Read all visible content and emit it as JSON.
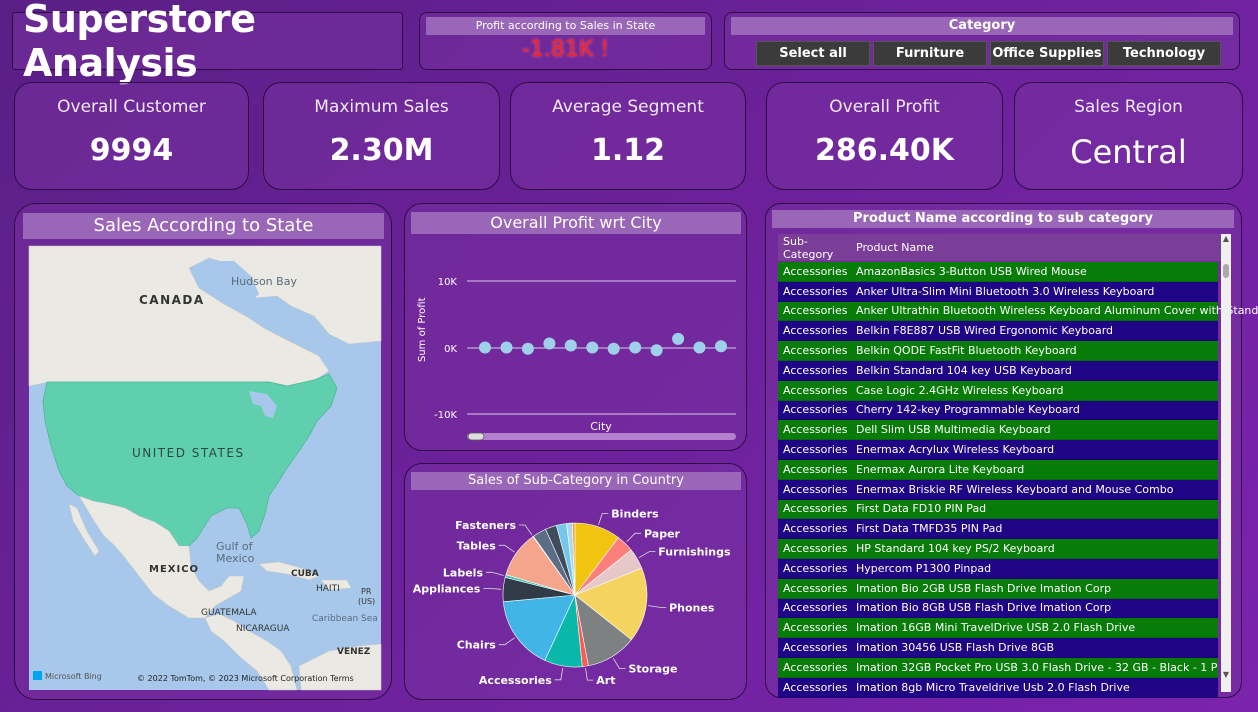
{
  "title": "Superstore Analysis",
  "profit_card": {
    "header": "Profit according to Sales in State",
    "value": "-1.81K !"
  },
  "category": {
    "header": "Category",
    "options": [
      "Select all",
      "Furniture",
      "Office Supplies",
      "Technology"
    ]
  },
  "kpis": {
    "customer": {
      "label": "Overall Customer",
      "value": "9994"
    },
    "max_sales": {
      "label": "Maximum Sales",
      "value": "2.30M"
    },
    "avg_segment": {
      "label": "Average Segment",
      "value": "1.12"
    },
    "profit": {
      "label": "Overall Profit",
      "value": "286.40K"
    },
    "region": {
      "label": "Sales Region",
      "value": "Central"
    }
  },
  "map": {
    "title": "Sales According to State",
    "labels": {
      "hudson": "Hudson Bay",
      "canada": "CANADA",
      "us": "UNITED STATES",
      "gulf1": "Gulf of",
      "gulf2": "Mexico",
      "mexico": "MEXICO",
      "cuba": "CUBA",
      "haiti": "HAITI",
      "pr1": "PR",
      "pr2": "(US)",
      "caribbean": "Caribbean Sea",
      "guatemala": "GUATEMALA",
      "nicaragua": "NICARAGUA",
      "venez": "VENEZ",
      "bing": "Microsoft Bing",
      "copyright": "© 2022 TomTom, © 2023 Microsoft Corporation  Terms"
    },
    "colors": {
      "water": "#a7c8ea",
      "land": "#ebe9e3",
      "highlight": "#5fcfae"
    }
  },
  "scatter": {
    "title": "Overall Profit wrt City",
    "chart_data": {
      "type": "scatter",
      "xlabel": "City",
      "ylabel": "Sum of Profit",
      "yticks": [
        "10K",
        "0K",
        "-10K"
      ],
      "ylim": [
        -10000,
        10000
      ],
      "values": [
        0,
        0,
        -200,
        600,
        300,
        0,
        -200,
        0,
        -400,
        1300,
        0,
        200
      ]
    }
  },
  "pie": {
    "title": "Sales of Sub-Category in Country",
    "chart_data": {
      "type": "pie",
      "slices": [
        {
          "label": "Binders",
          "value": 203,
          "color": "#f0c40f"
        },
        {
          "label": "Paper",
          "value": 78,
          "color": "#fd7f7c"
        },
        {
          "label": "Furnishings",
          "value": 92,
          "color": "#e6c8c8"
        },
        {
          "label": "Phones",
          "value": 330,
          "color": "#f4d35e"
        },
        {
          "label": "Storage",
          "value": 224,
          "color": "#7e8181"
        },
        {
          "label": "Art",
          "value": 27,
          "color": "#fc5a55"
        },
        {
          "label": "Accessories",
          "value": 167,
          "color": "#09b8a8"
        },
        {
          "label": "Chairs",
          "value": 328,
          "color": "#41b6e6"
        },
        {
          "label": "Appliances",
          "value": 107,
          "color": "#2f3c47"
        },
        {
          "label": "Labels",
          "value": 12,
          "color": "#3fc4b0"
        },
        {
          "label": "Tables",
          "value": 207,
          "color": "#f5a58c"
        },
        {
          "label": "Fasteners",
          "value": 3,
          "color": "#9b5b8e"
        },
        {
          "label": "",
          "value": 61,
          "color": "#5c6e85"
        },
        {
          "label": "",
          "value": 50,
          "color": "#3e4c5c"
        },
        {
          "label": "",
          "value": 45,
          "color": "#74c7e8"
        },
        {
          "label": "",
          "value": 25,
          "color": "#a8d8f2"
        },
        {
          "label": "",
          "value": 12,
          "color": "#f4a72e"
        }
      ]
    }
  },
  "table": {
    "title": "Product Name according to sub category",
    "headers": [
      "Sub-Category",
      "Product Name"
    ],
    "rows": [
      [
        "Accessories",
        "AmazonBasics 3-Button USB Wired Mouse"
      ],
      [
        "Accessories",
        "Anker Ultra-Slim Mini Bluetooth 3.0 Wireless Keyboard"
      ],
      [
        "Accessories",
        "Anker Ultrathin Bluetooth Wireless Keyboard Aluminum Cover with Stand"
      ],
      [
        "Accessories",
        "Belkin F8E887 USB Wired Ergonomic Keyboard"
      ],
      [
        "Accessories",
        "Belkin QODE FastFit Bluetooth Keyboard"
      ],
      [
        "Accessories",
        "Belkin Standard 104 key USB Keyboard"
      ],
      [
        "Accessories",
        "Case Logic 2.4GHz Wireless Keyboard"
      ],
      [
        "Accessories",
        "Cherry 142-key Programmable Keyboard"
      ],
      [
        "Accessories",
        "Dell Slim USB Multimedia Keyboard"
      ],
      [
        "Accessories",
        "Enermax Acrylux Wireless Keyboard"
      ],
      [
        "Accessories",
        "Enermax Aurora Lite Keyboard"
      ],
      [
        "Accessories",
        "Enermax Briskie RF Wireless Keyboard and Mouse Combo"
      ],
      [
        "Accessories",
        "First Data FD10 PIN Pad"
      ],
      [
        "Accessories",
        "First Data TMFD35 PIN Pad"
      ],
      [
        "Accessories",
        "HP Standard 104 key PS/2 Keyboard"
      ],
      [
        "Accessories",
        "Hypercom P1300 Pinpad"
      ],
      [
        "Accessories",
        "Imation Bio 2GB USB Flash Drive Imation Corp"
      ],
      [
        "Accessories",
        "Imation Bio 8GB USB Flash Drive Imation Corp"
      ],
      [
        "Accessories",
        "Imation 16GB Mini TravelDrive USB 2.0 Flash Drive"
      ],
      [
        "Accessories",
        "Imation 30456 USB Flash Drive 8GB"
      ],
      [
        "Accessories",
        "Imation 32GB Pocket Pro USB 3.0 Flash Drive - 32 GB - Black - 1 P ..."
      ],
      [
        "Accessories",
        "Imation 8gb Micro Traveldrive Usb 2.0 Flash Drive"
      ]
    ]
  }
}
